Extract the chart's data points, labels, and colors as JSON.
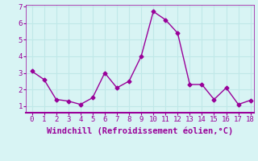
{
  "x": [
    0,
    1,
    2,
    3,
    4,
    5,
    6,
    7,
    8,
    9,
    10,
    11,
    12,
    13,
    14,
    15,
    16,
    17,
    18
  ],
  "y": [
    3.1,
    2.6,
    1.4,
    1.3,
    1.1,
    1.5,
    3.0,
    2.1,
    2.5,
    4.0,
    6.7,
    6.2,
    5.4,
    2.3,
    2.3,
    1.4,
    2.1,
    1.1,
    1.35
  ],
  "line_color": "#990099",
  "marker": "D",
  "marker_size": 2.5,
  "xlabel": "Windchill (Refroidissement éolien,°C)",
  "ylabel": "",
  "title": "",
  "xlim_min": -0.5,
  "xlim_max": 18.3,
  "ylim_min": 0.6,
  "ylim_max": 7.1,
  "yticks": [
    1,
    2,
    3,
    4,
    5,
    6,
    7
  ],
  "xticks": [
    0,
    1,
    2,
    3,
    4,
    5,
    6,
    7,
    8,
    9,
    10,
    11,
    12,
    13,
    14,
    15,
    16,
    17,
    18
  ],
  "bg_color": "#d8f4f4",
  "grid_color": "#c0e8e8",
  "tick_color": "#990099",
  "label_color": "#990099",
  "spine_color": "#990099",
  "font_family": "monospace"
}
